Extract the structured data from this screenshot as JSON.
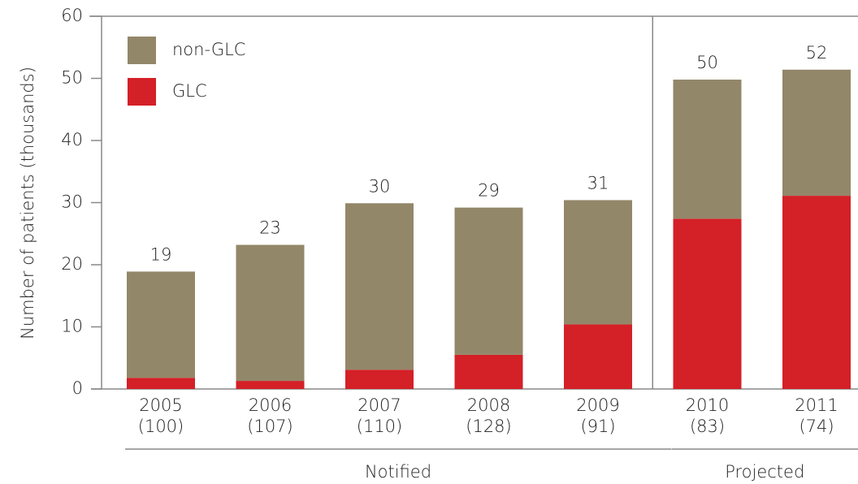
{
  "chart_data": {
    "type": "stacked-bar",
    "y_label": "Number of patients (thousands)",
    "categories": [
      "2005",
      "2006",
      "2007",
      "2008",
      "2009",
      "2010",
      "2011"
    ],
    "category_notes": [
      "(100)",
      "(107)",
      "(110)",
      "(128)",
      "(91)",
      "(83)",
      "(74)"
    ],
    "series": [
      {
        "name": "non-GLC",
        "color": "#938769",
        "values": [
          17.1,
          21.9,
          26.8,
          23.7,
          20.0,
          22.4,
          20.3
        ]
      },
      {
        "name": "GLC",
        "color": "#d42027",
        "values": [
          1.8,
          1.3,
          3.1,
          5.5,
          10.4,
          27.4,
          31.1
        ]
      }
    ],
    "totals": [
      19,
      23,
      30,
      29,
      31,
      50,
      52
    ],
    "groups": [
      {
        "label": "Notified",
        "categories": 5
      },
      {
        "label": "Projected",
        "categories": 2
      }
    ],
    "ylim": [
      0,
      60
    ],
    "yticks": [
      0,
      10,
      20,
      30,
      40,
      50,
      60
    ],
    "grid": false,
    "legend": "upper left"
  }
}
